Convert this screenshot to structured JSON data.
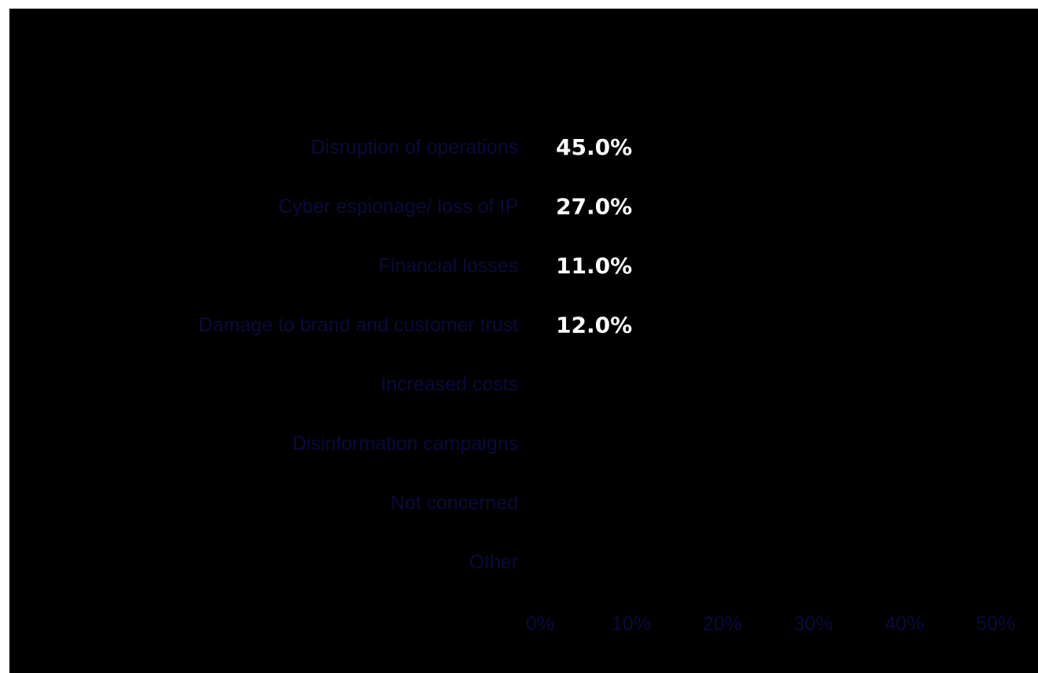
{
  "chart_data": {
    "type": "bar",
    "orientation": "horizontal",
    "categories": [
      "Disruption of operations",
      "Cyber espionage/ loss of IP",
      "Financial losses",
      "Damage to brand and customer trust",
      "Increased costs",
      "Disinformation campaigns",
      "Not concerned",
      "Other"
    ],
    "values": [
      45.0,
      27.0,
      11.0,
      12.0,
      null,
      null,
      null,
      null
    ],
    "data_labels": [
      "45.0%",
      "27.0%",
      "11.0%",
      "12.0%",
      "",
      "",
      "",
      ""
    ],
    "x_ticks": [
      "0%",
      "10%",
      "20%",
      "30%",
      "40%",
      "50%"
    ],
    "xlim": [
      0,
      50
    ],
    "title": "",
    "xlabel": "",
    "ylabel": "",
    "grid": false,
    "legend": "none"
  },
  "colors": {
    "background": "#000000",
    "page": "#ffffff",
    "bar": "#000000",
    "axis_text": "#0a0a3c",
    "data_label": "#ffffff"
  }
}
